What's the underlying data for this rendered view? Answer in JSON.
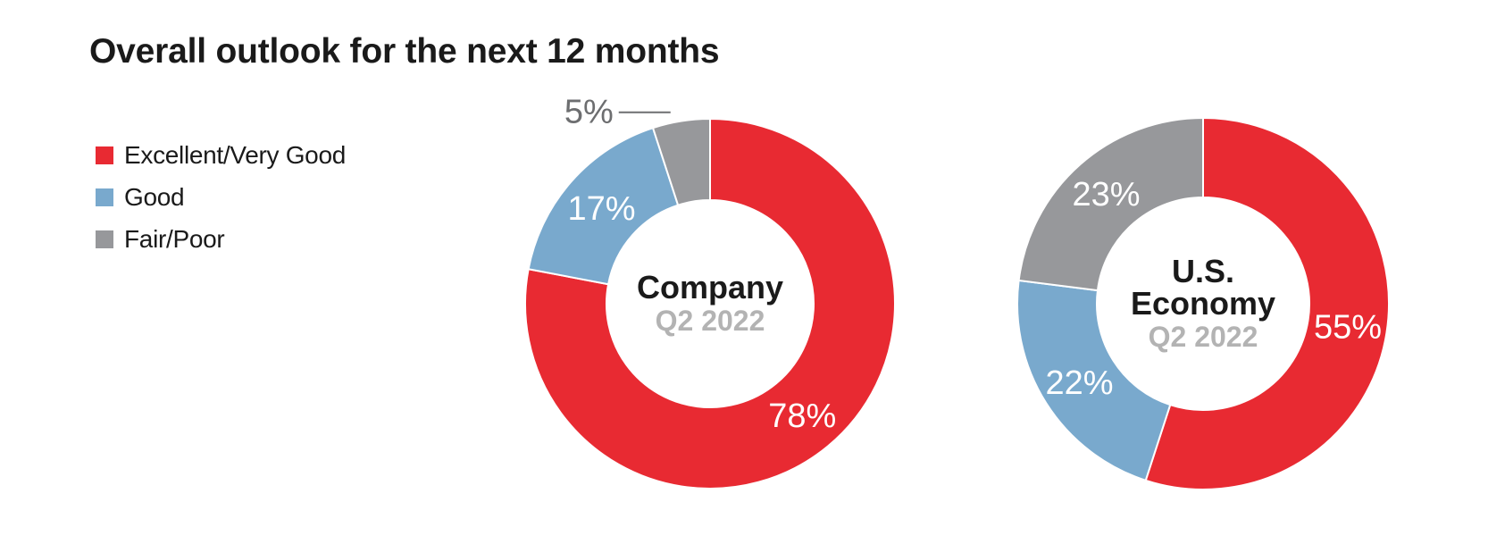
{
  "title": "Overall outlook for the next 12 months",
  "legend": [
    {
      "label": "Excellent/Very Good",
      "color": "#e82a32"
    },
    {
      "label": "Good",
      "color": "#79a9cd"
    },
    {
      "label": "Fair/Poor",
      "color": "#97989b"
    }
  ],
  "chart_data": [
    {
      "type": "pie",
      "title": "Company",
      "subtitle": "Q2 2022",
      "slices": [
        {
          "label": "Excellent/Very Good",
          "value": 78,
          "display": "78%",
          "color": "#e82a32"
        },
        {
          "label": "Good",
          "value": 17,
          "display": "17%",
          "color": "#79a9cd"
        },
        {
          "label": "Fair/Poor",
          "value": 5,
          "display": "5%",
          "color": "#97989b"
        }
      ]
    },
    {
      "type": "pie",
      "title": "U.S. Economy",
      "title_lines": [
        "U.S.",
        "Economy"
      ],
      "subtitle": "Q2 2022",
      "slices": [
        {
          "label": "Excellent/Very Good",
          "value": 55,
          "display": "55%",
          "color": "#e82a32"
        },
        {
          "label": "Good",
          "value": 22,
          "display": "22%",
          "color": "#79a9cd"
        },
        {
          "label": "Fair/Poor",
          "value": 23,
          "display": "23%",
          "color": "#97989b"
        }
      ]
    }
  ]
}
